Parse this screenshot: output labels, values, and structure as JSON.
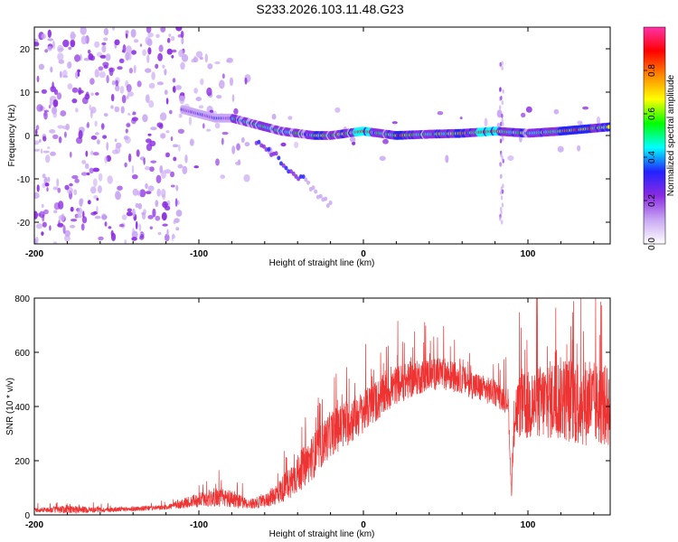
{
  "title": "S233.2026.103.11.48.G23",
  "colors": {
    "snr_line": "#ee3333",
    "axes": "#000000",
    "background": "#ffffff"
  },
  "chart_data": [
    {
      "type": "heatmap",
      "name": "spectrogram",
      "xlabel": "Height of straight line (km)",
      "ylabel": "Frequency (Hz)",
      "xlim": [
        -200,
        150
      ],
      "ylim": [
        -25,
        25
      ],
      "x_ticks": [
        -200,
        -100,
        0,
        100
      ],
      "x_tick_labels": [
        "-200",
        "-100",
        "0",
        "100"
      ],
      "y_ticks": [
        -20,
        -10,
        0,
        10,
        20
      ],
      "y_tick_labels": [
        "-20",
        "-10",
        "0",
        "10",
        "20"
      ],
      "ridge": {
        "description_points_x": [
          -110,
          -100,
          -90,
          -80,
          -70,
          -60,
          -50,
          -40,
          -30,
          -20,
          0,
          20,
          40,
          60,
          80,
          100,
          120,
          150
        ],
        "frequency_hz": [
          6,
          5,
          4,
          4,
          3,
          2,
          1,
          0.5,
          0,
          0,
          1,
          0,
          0.3,
          0.5,
          1,
          0.5,
          1,
          2
        ]
      },
      "colorbar": {
        "label": "Normalized spectral amplitude",
        "range": [
          0,
          1
        ],
        "ticks": [
          0.0,
          0.2,
          0.4,
          0.6,
          0.8
        ],
        "tick_labels": [
          "0.0",
          "0.2",
          "0.4",
          "0.6",
          "0.8"
        ],
        "stops": [
          "#ffffff",
          "#c9a8f3",
          "#8a2be2",
          "#2222ff",
          "#00ffff",
          "#00ff00",
          "#ffff00",
          "#ff8800",
          "#ff0000",
          "#ff33aa"
        ]
      }
    },
    {
      "type": "line",
      "name": "snr",
      "xlabel": "Height of straight line (km)",
      "ylabel": "SNR (10 * v/v)",
      "xlim": [
        -200,
        150
      ],
      "ylim": [
        0,
        800
      ],
      "x_ticks": [
        -200,
        -100,
        0,
        100
      ],
      "x_tick_labels": [
        "-200",
        "-100",
        "0",
        "100"
      ],
      "y_ticks": [
        0,
        200,
        400,
        600,
        800
      ],
      "y_tick_labels": [
        "0",
        "200",
        "400",
        "600",
        "800"
      ],
      "envelope": {
        "x": [
          -200,
          -180,
          -160,
          -140,
          -120,
          -100,
          -90,
          -80,
          -70,
          -60,
          -50,
          -40,
          -30,
          -20,
          -10,
          0,
          10,
          20,
          30,
          40,
          50,
          60,
          70,
          80,
          85,
          88,
          90,
          92,
          95,
          100,
          110,
          120,
          130,
          140,
          150
        ],
        "base": [
          18,
          20,
          18,
          22,
          28,
          55,
          65,
          60,
          40,
          50,
          90,
          150,
          220,
          300,
          340,
          380,
          430,
          480,
          500,
          520,
          520,
          500,
          470,
          450,
          430,
          420,
          70,
          380,
          400,
          400,
          420,
          430,
          420,
          410,
          400
        ],
        "amplitude": [
          12,
          25,
          15,
          15,
          15,
          45,
          60,
          55,
          30,
          40,
          80,
          120,
          140,
          140,
          150,
          130,
          130,
          120,
          110,
          100,
          100,
          90,
          90,
          80,
          80,
          80,
          20,
          180,
          200,
          220,
          240,
          260,
          280,
          260,
          250
        ]
      }
    }
  ]
}
